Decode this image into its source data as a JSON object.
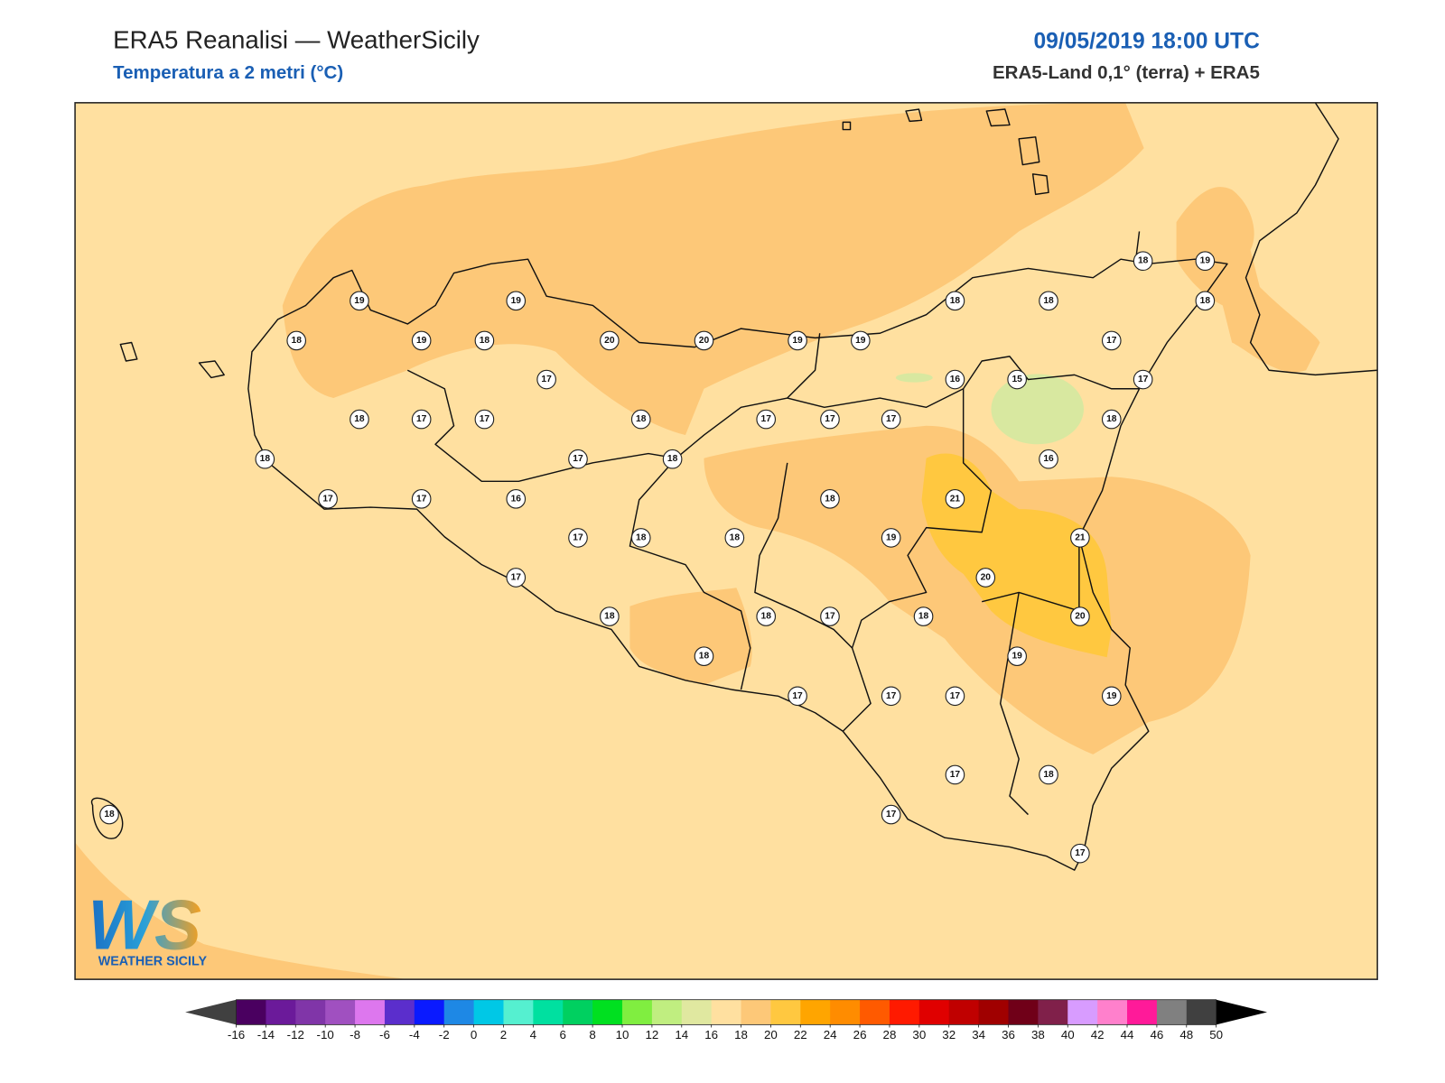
{
  "header": {
    "title": "ERA5 Reanalisi — WeatherSicily",
    "subtitle": "Temperatura a 2 metri (°C)",
    "datetime": "09/05/2019 18:00 UTC",
    "source": "ERA5-Land 0,1° (terra) + ERA5"
  },
  "stations": [
    19,
    19,
    18,
    19,
    18,
    20,
    20,
    19,
    19,
    18,
    18,
    18,
    19,
    18,
    17,
    17,
    16,
    15,
    17,
    18,
    17,
    17,
    18,
    17,
    17,
    17,
    18,
    18,
    17,
    18,
    16,
    17,
    17,
    16,
    18,
    21,
    17,
    18,
    18,
    19,
    21,
    17,
    20,
    18,
    18,
    17,
    18,
    20,
    18,
    19,
    17,
    17,
    17,
    19,
    17,
    18,
    17,
    17,
    18
  ],
  "colorbar": {
    "ticks": [
      -16,
      -14,
      -12,
      -10,
      -8,
      -6,
      -4,
      -2,
      0,
      2,
      4,
      6,
      8,
      10,
      12,
      14,
      16,
      18,
      20,
      22,
      24,
      26,
      28,
      30,
      32,
      34,
      36,
      38,
      40,
      42,
      44,
      46,
      48,
      50
    ],
    "colors": [
      "#4a0060",
      "#6b1a9a",
      "#8035a8",
      "#a050c0",
      "#dd77ee",
      "#5b2ecc",
      "#0a1aff",
      "#1e88e5",
      "#00c8e6",
      "#55f0d0",
      "#00e0a0",
      "#00d060",
      "#00e020",
      "#80ee40",
      "#c0ee80",
      "#e0e8a0",
      "#ffe0a0",
      "#fdc878",
      "#ffc840",
      "#ffa500",
      "#ff8c00",
      "#ff5a00",
      "#ff1a00",
      "#e00000",
      "#c00000",
      "#a00000",
      "#700018",
      "#80204a",
      "#d89cff",
      "#ff80cc",
      "#ff1a99",
      "#808080",
      "#404040"
    ],
    "under_color": "#404040",
    "over_color": "#000000"
  },
  "logo": {
    "mark": "WS",
    "name": "WEATHER SICILY"
  }
}
